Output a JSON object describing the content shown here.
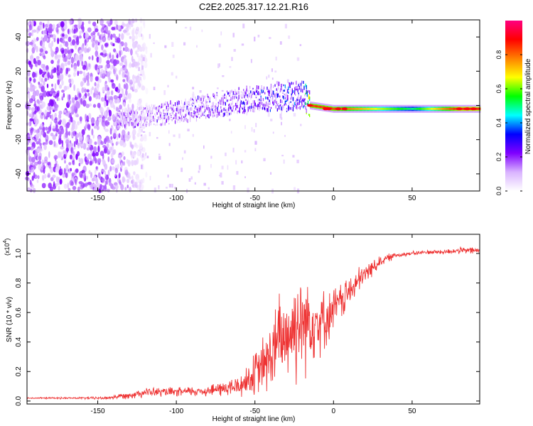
{
  "title": "C2E2.2025.317.12.21.R16",
  "chart_data": [
    {
      "type": "heatmap",
      "title": "C2E2.2025.317.12.21.R16",
      "xlabel": "Height of straight line (km)",
      "ylabel": "Frequency (Hz)",
      "xlim": [
        -195,
        93
      ],
      "ylim": [
        -50,
        50
      ],
      "xticks": [
        -150,
        -100,
        -50,
        0,
        50
      ],
      "yticks": [
        -40,
        -20,
        0,
        20,
        40
      ],
      "colorbar": {
        "label": "Normalized spectral amplitude",
        "range": [
          0,
          1
        ],
        "ticks": [
          0.0,
          0.2,
          0.4,
          0.6,
          0.8
        ],
        "colors": [
          "#ffffff",
          "#d9b3ff",
          "#8000ff",
          "#0000ff",
          "#00ffff",
          "#00ff00",
          "#ffff00",
          "#ff8000",
          "#ff0000",
          "#ff0080"
        ]
      },
      "description_points": {
        "noise_region_x": [
          -195,
          -125
        ],
        "band": [
          {
            "x": -135,
            "freq": -8,
            "amplitude": 0.25
          },
          {
            "x": -100,
            "freq": -4,
            "amplitude": 0.3
          },
          {
            "x": -60,
            "freq": 3,
            "amplitude": 0.35
          },
          {
            "x": -20,
            "freq": 6,
            "amplitude": 0.45
          },
          {
            "x": -15,
            "freq": 0,
            "amplitude": 0.85
          },
          {
            "x": 0,
            "freq": -2,
            "amplitude": 0.85
          },
          {
            "x": 50,
            "freq": -2,
            "amplitude": 0.5
          },
          {
            "x": 80,
            "freq": -2,
            "amplitude": 0.9
          }
        ]
      }
    },
    {
      "type": "line",
      "xlabel": "Height of straight line (km)",
      "ylabel": "SNR (10 * v/v)",
      "y_multiplier": "(x10",
      "y_exponent": "4",
      "y_multiplier_close": ")",
      "xlim": [
        -195,
        93
      ],
      "ylim": [
        -0.02,
        1.13
      ],
      "xticks": [
        -150,
        -100,
        -50,
        0,
        50
      ],
      "yticks": [
        0.0,
        0.2,
        0.4,
        0.6,
        0.8,
        1.0
      ],
      "series": [
        {
          "name": "SNR",
          "color": "#ee3333",
          "x": [
            -195,
            -170,
            -145,
            -130,
            -120,
            -100,
            -80,
            -60,
            -50,
            -40,
            -35,
            -30,
            -25,
            -20,
            -15,
            -10,
            -5,
            0,
            10,
            20,
            30,
            40,
            50,
            60,
            70,
            80,
            93
          ],
          "y": [
            0.02,
            0.02,
            0.02,
            0.04,
            0.06,
            0.06,
            0.07,
            0.1,
            0.18,
            0.3,
            0.4,
            0.45,
            0.5,
            0.55,
            0.55,
            0.55,
            0.55,
            0.62,
            0.74,
            0.86,
            0.95,
            0.99,
            1.0,
            1.01,
            1.01,
            1.02,
            1.02
          ],
          "noise_amplitude": [
            0.004,
            0.005,
            0.008,
            0.02,
            0.025,
            0.025,
            0.03,
            0.06,
            0.12,
            0.2,
            0.26,
            0.28,
            0.3,
            0.3,
            0.25,
            0.2,
            0.15,
            0.12,
            0.09,
            0.06,
            0.03,
            0.015,
            0.012,
            0.012,
            0.015,
            0.018,
            0.02
          ]
        }
      ]
    }
  ]
}
